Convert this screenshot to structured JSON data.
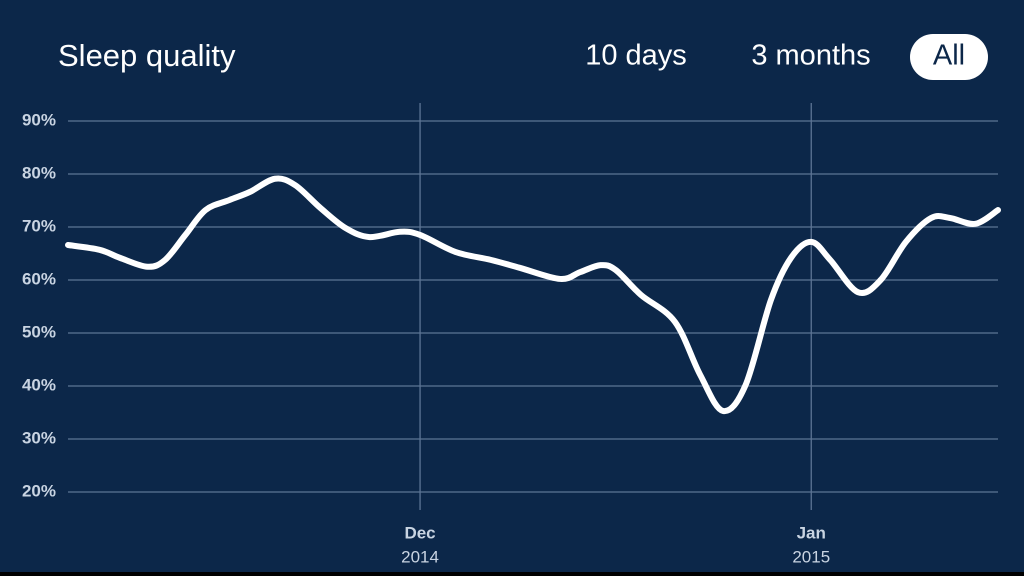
{
  "chart_data": {
    "type": "line",
    "title": "Sleep quality",
    "ranges": [
      "10 days",
      "3 months",
      "All"
    ],
    "active_range": 2,
    "x": [
      0,
      2.5,
      4.1,
      6.3,
      7.7,
      9.3,
      10.9,
      12.8,
      14.4,
      16.4,
      18.0,
      20.0,
      22.0,
      23.9,
      26.3,
      27.9,
      30.7,
      33.5,
      35.8,
      39.0,
      40.6,
      42.2,
      43.4,
      45.4,
      48.1,
      50.1,
      51.9,
      53.7,
      55.7,
      57.3,
      58.9,
      60.4,
      62.6,
      64.4,
      66.4,
      68.4,
      69.9,
      71.9,
      73.7
    ],
    "series": [
      {
        "color": "#ffffff",
        "values": [
          66.6,
          65.7,
          64.2,
          62.5,
          63.8,
          68.5,
          73.2,
          75.1,
          76.6,
          79.1,
          77.9,
          73.6,
          69.8,
          68.1,
          69.1,
          68.5,
          65.3,
          63.8,
          62.3,
          60.2,
          61.5,
          62.8,
          61.9,
          57.2,
          52.1,
          42.1,
          35.3,
          40.2,
          56.2,
          64.2,
          67.2,
          63.8,
          57.7,
          60.0,
          67.2,
          71.7,
          71.7,
          70.6,
          73.2
        ]
      }
    ],
    "xlim": [
      0,
      73.7
    ],
    "xticks": [
      {
        "value": 27.9,
        "label": "Dec"
      },
      {
        "value": 58.9,
        "label": "Jan"
      }
    ],
    "xtick_years": [
      "2014",
      "2015"
    ],
    "ylim": [
      20,
      90
    ],
    "yticks": [
      {
        "value": 20,
        "label": "20%"
      },
      {
        "value": 30,
        "label": "30%"
      },
      {
        "value": 40,
        "label": "40%"
      },
      {
        "value": 50,
        "label": "50%"
      },
      {
        "value": 60,
        "label": "60%"
      },
      {
        "value": 70,
        "label": "70%"
      },
      {
        "value": 80,
        "label": "80%"
      },
      {
        "value": 90,
        "label": "90%"
      }
    ],
    "grid": true
  }
}
